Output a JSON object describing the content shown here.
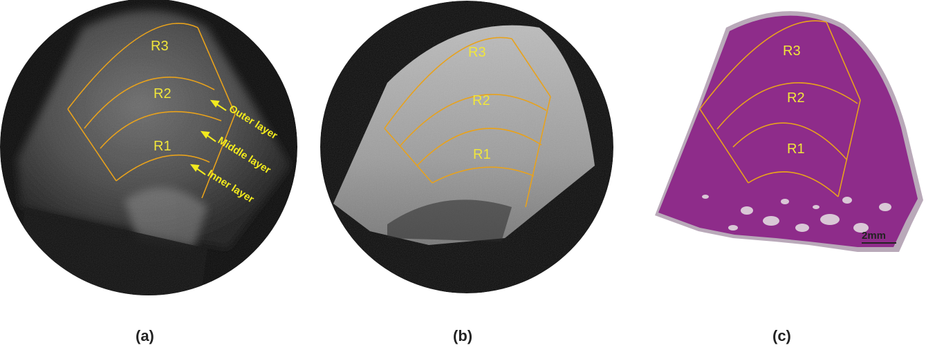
{
  "colors": {
    "region_outline": "#e8a21c",
    "region_text": "#f1e63a",
    "layer_text": "#f2ea1e",
    "histology": "#8e2c8a",
    "background": "#ffffff"
  },
  "panels": [
    {
      "label": "(a)",
      "regions": [
        "R3",
        "R2",
        "R1"
      ],
      "layers": [
        "Outer layer",
        "Middle layer",
        "Inner layer"
      ]
    },
    {
      "label": "(b)",
      "regions": [
        "R3",
        "R2",
        "R1"
      ]
    },
    {
      "label": "(c)",
      "regions": [
        "R3",
        "R2",
        "R1"
      ],
      "scale_bar": "2mm"
    }
  ]
}
